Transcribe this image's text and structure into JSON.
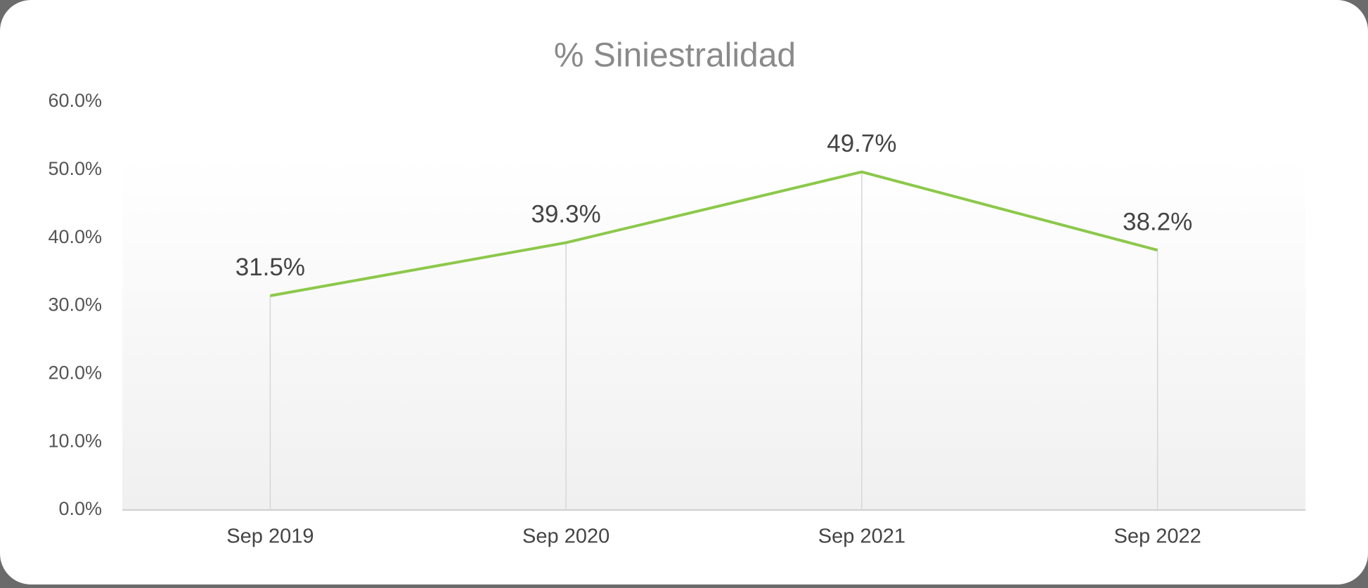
{
  "chart_data": {
    "type": "line",
    "title": "% Siniestralidad",
    "categories": [
      "Sep 2019",
      "Sep 2020",
      "Sep 2021",
      "Sep 2022"
    ],
    "values": [
      31.5,
      39.3,
      49.7,
      38.2
    ],
    "value_labels": [
      "31.5%",
      "39.3%",
      "49.7%",
      "38.2%"
    ],
    "color": "#8cc84b",
    "drop_lines": true,
    "ylim": [
      0,
      60
    ],
    "yticks": [
      {
        "value": 0,
        "label": "0.0%"
      },
      {
        "value": 10,
        "label": "10.0%"
      },
      {
        "value": 20,
        "label": "20.0%"
      },
      {
        "value": 30,
        "label": "30.0%"
      },
      {
        "value": 40,
        "label": "40.0%"
      },
      {
        "value": 50,
        "label": "50.0%"
      },
      {
        "value": 60,
        "label": "60.0%"
      }
    ],
    "grid": false
  }
}
